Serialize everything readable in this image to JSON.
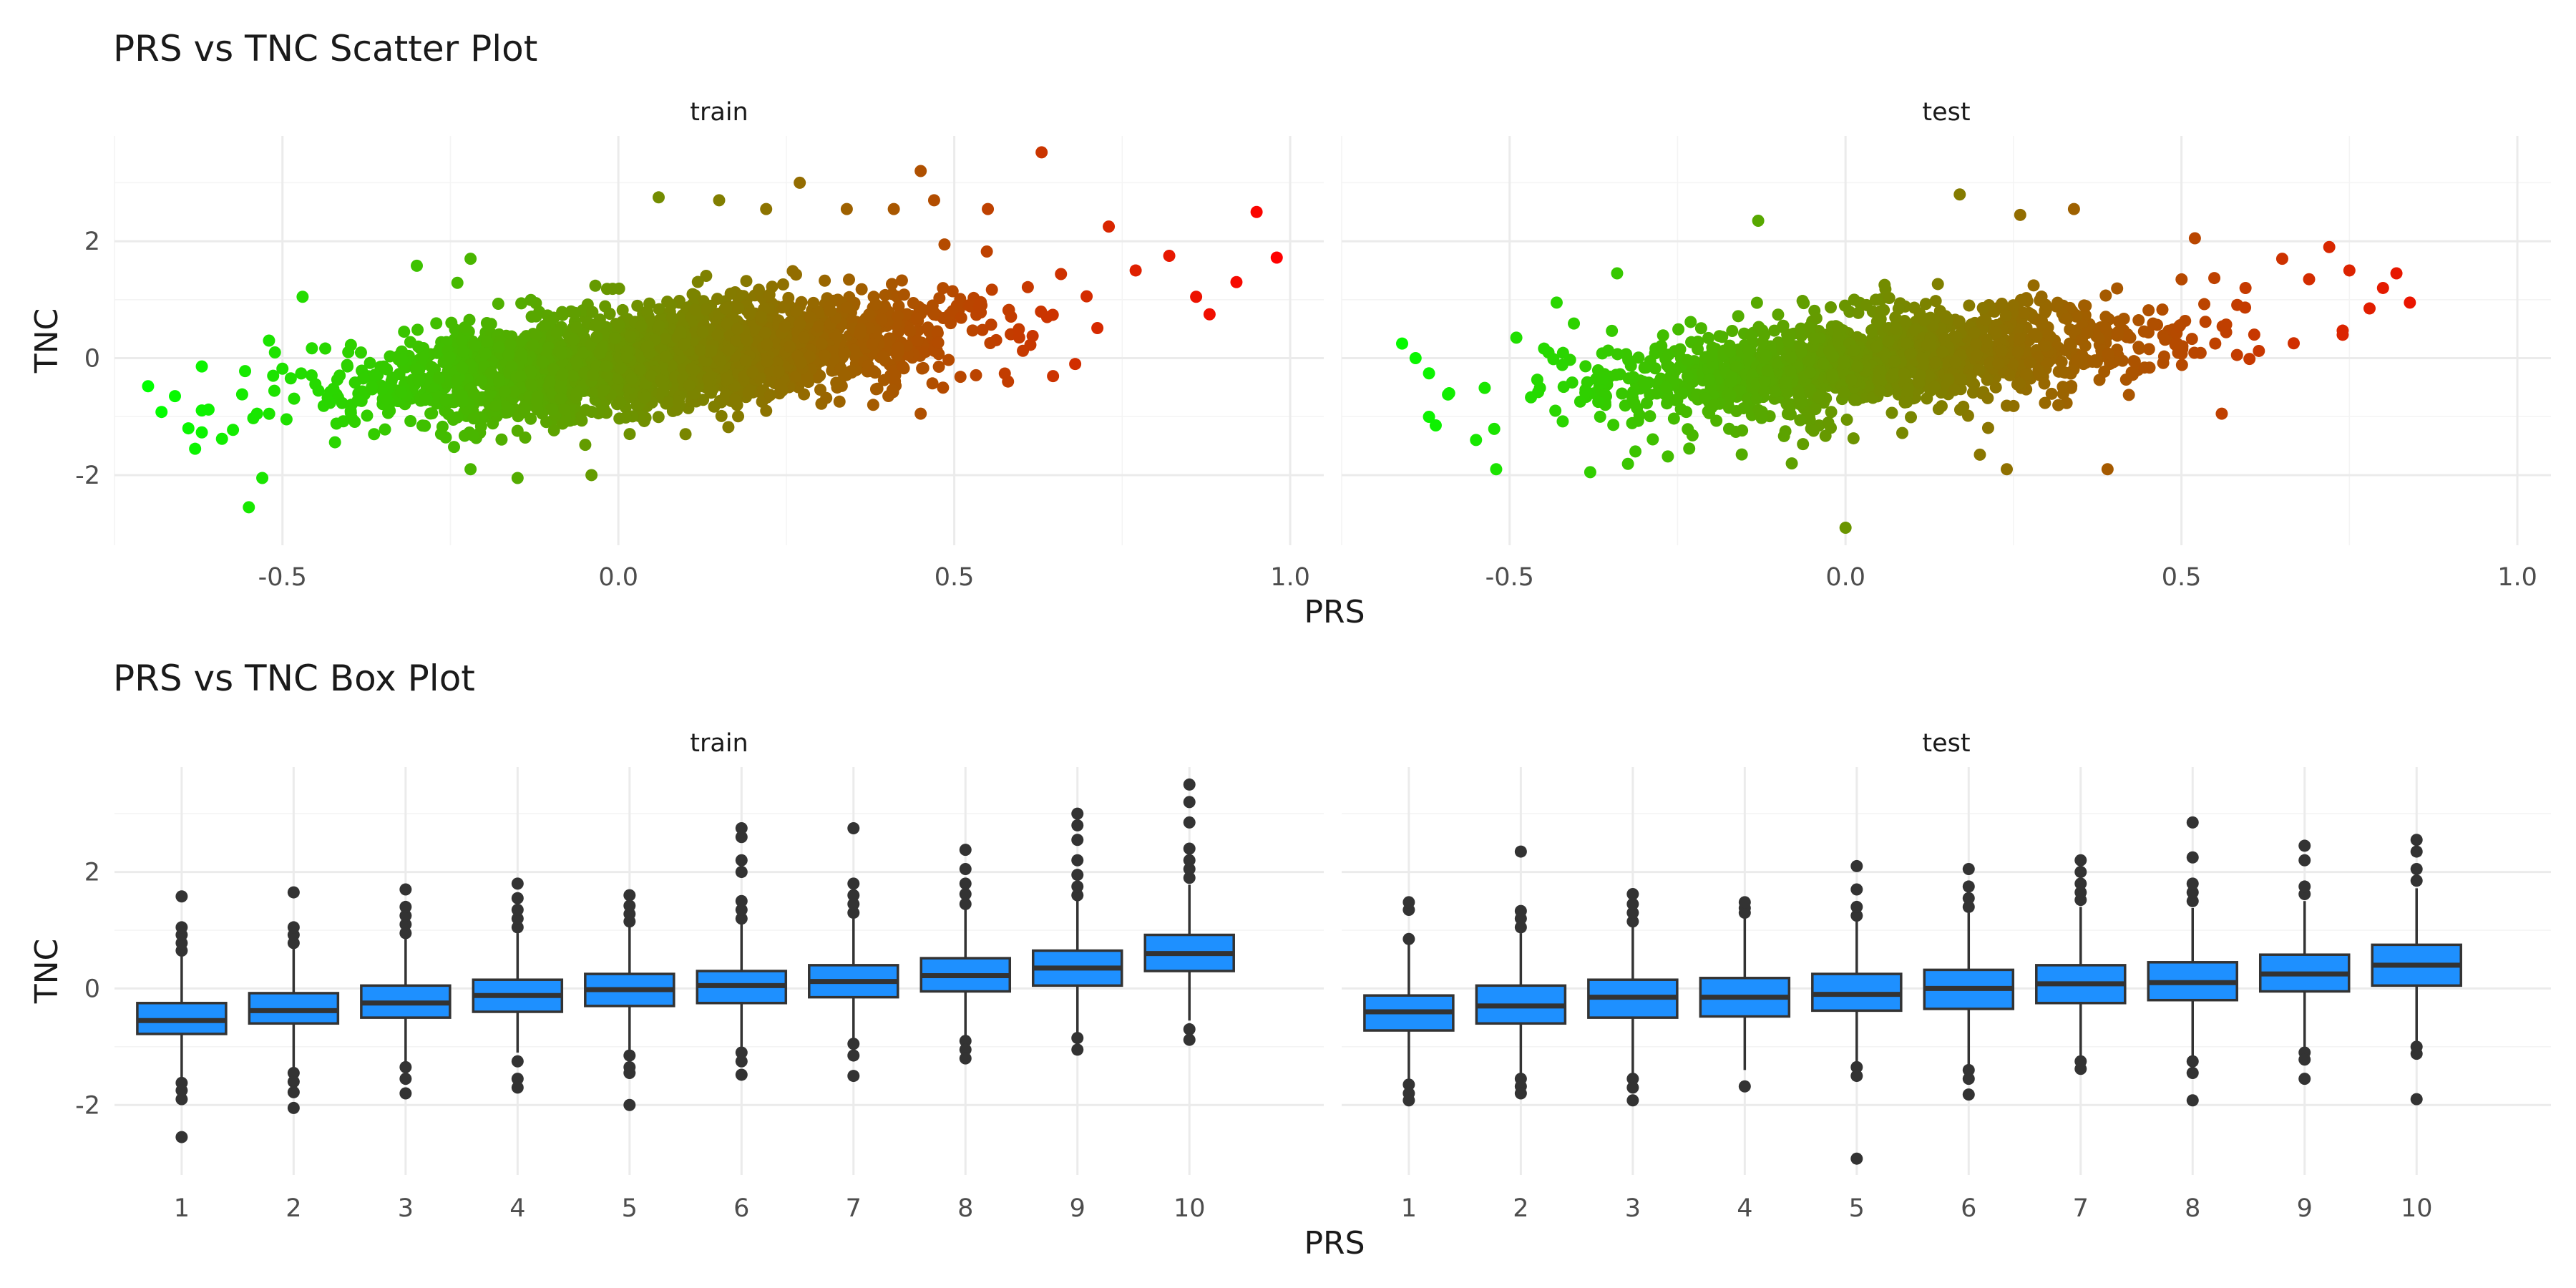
{
  "figure": {
    "scatter_title": "PRS vs TNC Scatter Plot",
    "box_title": "PRS vs TNC Box Plot"
  },
  "chart_data": [
    {
      "type": "scatter",
      "title": "PRS vs TNC Scatter Plot",
      "xlabel": "PRS",
      "ylabel": "TNC",
      "facets": [
        "train",
        "test"
      ],
      "xlim": [
        -0.75,
        1.05
      ],
      "ylim": [
        -3.2,
        3.8
      ],
      "x_ticks": [
        -0.5,
        0.0,
        0.5,
        1.0
      ],
      "x_tick_labels": [
        "-0.5",
        "0.0",
        "0.5",
        "1.0"
      ],
      "y_ticks": [
        -2,
        0,
        2
      ],
      "y_tick_labels": [
        "-2",
        "0",
        "2"
      ],
      "color_gradient": [
        "#00ff00",
        "#ff0000"
      ],
      "grid": true,
      "series": [
        {
          "facet": "train",
          "points": [
            [
              -0.7,
              -0.48
            ],
            [
              -0.68,
              -0.92
            ],
            [
              -0.66,
              -0.65
            ],
            [
              -0.64,
              -1.2
            ],
            [
              -0.63,
              -1.55
            ],
            [
              -0.61,
              -0.88
            ],
            [
              -0.59,
              -1.38
            ],
            [
              -0.56,
              -0.62
            ],
            [
              -0.55,
              -2.55
            ],
            [
              -0.53,
              -2.05
            ],
            [
              -0.52,
              0.3
            ],
            [
              -0.5,
              -0.18
            ],
            [
              -0.47,
              1.05
            ],
            [
              -0.3,
              1.58
            ],
            [
              -0.22,
              -1.9
            ],
            [
              -0.15,
              -2.05
            ],
            [
              -0.04,
              -2.0
            ],
            [
              -0.22,
              1.7
            ],
            [
              0.06,
              2.75
            ],
            [
              0.15,
              2.7
            ],
            [
              0.22,
              2.55
            ],
            [
              0.27,
              3.0
            ],
            [
              0.34,
              2.55
            ],
            [
              0.41,
              2.55
            ],
            [
              0.45,
              3.2
            ],
            [
              0.47,
              2.7
            ],
            [
              0.55,
              2.55
            ],
            [
              0.63,
              3.52
            ],
            [
              0.73,
              2.25
            ],
            [
              0.77,
              1.5
            ],
            [
              0.82,
              1.75
            ],
            [
              0.86,
              1.05
            ],
            [
              0.88,
              0.75
            ],
            [
              0.92,
              1.3
            ],
            [
              0.95,
              2.5
            ],
            [
              0.98,
              1.72
            ],
            [
              0.68,
              -0.1
            ],
            [
              0.58,
              -0.4
            ],
            [
              0.45,
              -0.95
            ],
            [
              0.1,
              -1.3
            ]
          ],
          "cloud": {
            "n": 2800,
            "x_mean": 0.05,
            "x_sd": 0.21,
            "slope": 1.12,
            "intercept": -0.05,
            "resid_sd": 0.42,
            "seed": 11
          }
        },
        {
          "facet": "test",
          "points": [
            [
              -0.66,
              0.25
            ],
            [
              -0.64,
              0.0
            ],
            [
              -0.61,
              -1.15
            ],
            [
              -0.59,
              -0.6
            ],
            [
              -0.55,
              -1.4
            ],
            [
              -0.52,
              -1.9
            ],
            [
              -0.49,
              0.35
            ],
            [
              -0.43,
              0.95
            ],
            [
              -0.38,
              -1.95
            ],
            [
              -0.34,
              1.45
            ],
            [
              -0.13,
              2.35
            ],
            [
              -0.08,
              -1.8
            ],
            [
              0.0,
              -2.9
            ],
            [
              0.17,
              2.8
            ],
            [
              0.2,
              -1.65
            ],
            [
              0.24,
              -1.9
            ],
            [
              0.26,
              2.45
            ],
            [
              0.34,
              2.55
            ],
            [
              0.39,
              -1.9
            ],
            [
              0.52,
              2.05
            ],
            [
              0.65,
              1.7
            ],
            [
              0.69,
              1.35
            ],
            [
              0.72,
              1.9
            ],
            [
              0.75,
              1.5
            ],
            [
              0.78,
              0.85
            ],
            [
              0.8,
              1.2
            ],
            [
              0.82,
              1.45
            ],
            [
              0.84,
              0.95
            ],
            [
              0.56,
              -0.95
            ],
            [
              0.74,
              0.4
            ]
          ],
          "cloud": {
            "n": 1500,
            "x_mean": 0.05,
            "x_sd": 0.21,
            "slope": 0.95,
            "intercept": -0.1,
            "resid_sd": 0.42,
            "seed": 29
          }
        }
      ]
    },
    {
      "type": "box",
      "title": "PRS vs TNC Box Plot",
      "xlabel": "PRS",
      "ylabel": "TNC",
      "facets": [
        "train",
        "test"
      ],
      "categories": [
        "1",
        "2",
        "3",
        "4",
        "5",
        "6",
        "7",
        "8",
        "9",
        "10"
      ],
      "ylim": [
        -3.2,
        3.8
      ],
      "y_ticks": [
        -2,
        0,
        2
      ],
      "y_tick_labels": [
        "-2",
        "0",
        "2"
      ],
      "box_color": "#1e90ff",
      "outline_color": "#333333",
      "grid": true,
      "series": [
        {
          "facet": "train",
          "boxes": [
            {
              "q1": -0.78,
              "median": -0.55,
              "q3": -0.25,
              "lower": -1.55,
              "upper": 0.55,
              "outliers": [
                0.65,
                0.78,
                0.92,
                1.05,
                1.58,
                -1.62,
                -1.75,
                -1.9,
                -2.55
              ]
            },
            {
              "q1": -0.6,
              "median": -0.38,
              "q3": -0.08,
              "lower": -1.35,
              "upper": 0.68,
              "outliers": [
                0.78,
                0.92,
                1.05,
                1.65,
                -1.45,
                -1.6,
                -1.78,
                -2.05
              ]
            },
            {
              "q1": -0.5,
              "median": -0.25,
              "q3": 0.05,
              "lower": -1.25,
              "upper": 0.85,
              "outliers": [
                0.95,
                1.1,
                1.25,
                1.4,
                1.7,
                -1.35,
                -1.55,
                -1.8
              ]
            },
            {
              "q1": -0.4,
              "median": -0.12,
              "q3": 0.15,
              "lower": -1.1,
              "upper": 0.95,
              "outliers": [
                1.05,
                1.2,
                1.35,
                1.55,
                1.8,
                -1.25,
                -1.55,
                -1.7
              ]
            },
            {
              "q1": -0.3,
              "median": -0.02,
              "q3": 0.25,
              "lower": -1.05,
              "upper": 1.05,
              "outliers": [
                1.15,
                1.28,
                1.42,
                1.6,
                -1.15,
                -1.35,
                -1.45,
                -2.0
              ]
            },
            {
              "q1": -0.25,
              "median": 0.05,
              "q3": 0.3,
              "lower": -1.0,
              "upper": 1.1,
              "outliers": [
                1.2,
                1.35,
                1.5,
                2.0,
                2.2,
                2.6,
                2.75,
                -1.1,
                -1.25,
                -1.48
              ]
            },
            {
              "q1": -0.15,
              "median": 0.12,
              "q3": 0.4,
              "lower": -0.88,
              "upper": 1.2,
              "outliers": [
                1.3,
                1.45,
                1.6,
                1.8,
                2.75,
                -0.95,
                -1.15,
                -1.5
              ]
            },
            {
              "q1": -0.05,
              "median": 0.22,
              "q3": 0.52,
              "lower": -0.82,
              "upper": 1.35,
              "outliers": [
                1.45,
                1.62,
                1.8,
                2.05,
                2.38,
                -0.9,
                -1.05,
                -1.2
              ]
            },
            {
              "q1": 0.05,
              "median": 0.35,
              "q3": 0.65,
              "lower": -0.78,
              "upper": 1.5,
              "outliers": [
                1.6,
                1.75,
                1.95,
                2.2,
                2.55,
                2.8,
                3.0,
                -0.85,
                -1.05
              ]
            },
            {
              "q1": 0.3,
              "median": 0.6,
              "q3": 0.92,
              "lower": -0.55,
              "upper": 1.78,
              "outliers": [
                1.9,
                2.05,
                2.2,
                2.4,
                2.85,
                3.2,
                3.5,
                -0.7,
                -0.88
              ]
            }
          ]
        },
        {
          "facet": "test",
          "boxes": [
            {
              "q1": -0.72,
              "median": -0.4,
              "q3": -0.12,
              "lower": -1.6,
              "upper": 0.75,
              "outliers": [
                0.85,
                1.35,
                1.48,
                -1.65,
                -1.8,
                -1.92
              ]
            },
            {
              "q1": -0.6,
              "median": -0.3,
              "q3": 0.05,
              "lower": -1.5,
              "upper": 0.95,
              "outliers": [
                1.05,
                1.2,
                1.33,
                2.35,
                -1.55,
                -1.68,
                -1.8
              ]
            },
            {
              "q1": -0.5,
              "median": -0.15,
              "q3": 0.15,
              "lower": -1.5,
              "upper": 1.05,
              "outliers": [
                1.15,
                1.3,
                1.45,
                1.62,
                -1.55,
                -1.7,
                -1.92
              ]
            },
            {
              "q1": -0.48,
              "median": -0.15,
              "q3": 0.18,
              "lower": -1.4,
              "upper": 1.2,
              "outliers": [
                1.3,
                1.38,
                1.48,
                -1.68
              ]
            },
            {
              "q1": -0.38,
              "median": -0.1,
              "q3": 0.25,
              "lower": -1.3,
              "upper": 1.15,
              "outliers": [
                1.25,
                1.4,
                1.7,
                2.1,
                -1.35,
                -1.5,
                -2.92
              ]
            },
            {
              "q1": -0.35,
              "median": 0.0,
              "q3": 0.32,
              "lower": -1.3,
              "upper": 1.3,
              "outliers": [
                1.4,
                1.55,
                1.75,
                2.05,
                -1.4,
                -1.55,
                -1.82
              ]
            },
            {
              "q1": -0.25,
              "median": 0.08,
              "q3": 0.4,
              "lower": -1.15,
              "upper": 1.4,
              "outliers": [
                1.52,
                1.65,
                1.8,
                2.0,
                2.2,
                -1.25,
                -1.38
              ]
            },
            {
              "q1": -0.2,
              "median": 0.1,
              "q3": 0.45,
              "lower": -1.15,
              "upper": 1.38,
              "outliers": [
                1.5,
                1.65,
                1.8,
                2.25,
                2.85,
                -1.25,
                -1.45,
                -1.92
              ]
            },
            {
              "q1": -0.05,
              "median": 0.25,
              "q3": 0.58,
              "lower": -1.0,
              "upper": 1.5,
              "outliers": [
                1.62,
                1.75,
                2.2,
                2.45,
                -1.1,
                -1.22,
                -1.55
              ]
            },
            {
              "q1": 0.05,
              "median": 0.4,
              "q3": 0.75,
              "lower": -0.9,
              "upper": 1.72,
              "outliers": [
                1.85,
                2.05,
                2.35,
                2.55,
                -1.0,
                -1.12,
                -1.9
              ]
            }
          ]
        }
      ]
    }
  ]
}
